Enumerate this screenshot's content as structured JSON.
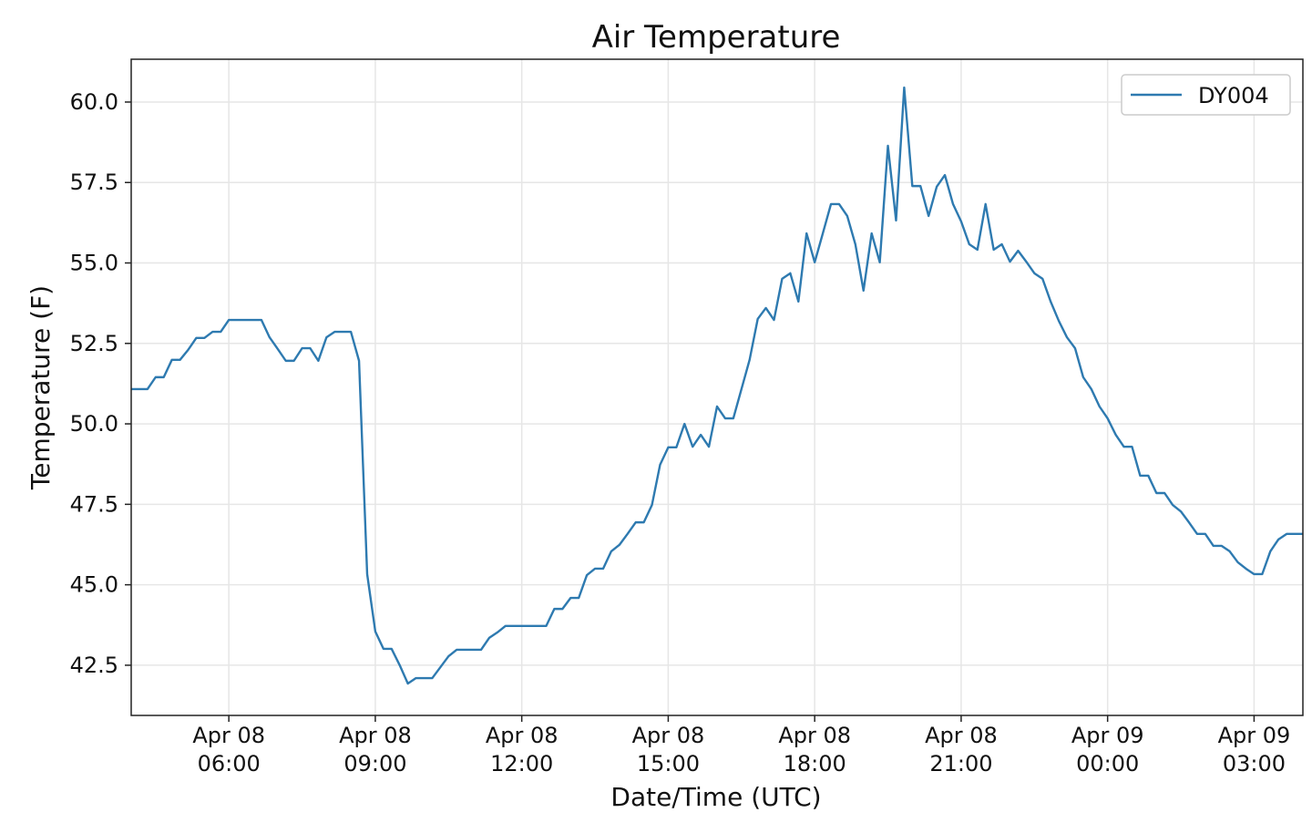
{
  "chart_data": {
    "type": "line",
    "title": "Air Temperature",
    "xlabel": "Date/Time (UTC)",
    "ylabel": "Temperature (F)",
    "legend": "upper right",
    "grid": true,
    "x": [
      "Apr 08 04:00",
      "Apr 08 04:10",
      "Apr 08 04:20",
      "Apr 08 04:30",
      "Apr 08 04:40",
      "Apr 08 04:50",
      "Apr 08 05:00",
      "Apr 08 05:10",
      "Apr 08 05:20",
      "Apr 08 05:30",
      "Apr 08 05:40",
      "Apr 08 05:50",
      "Apr 08 06:00",
      "Apr 08 06:10",
      "Apr 08 06:20",
      "Apr 08 06:30",
      "Apr 08 06:40",
      "Apr 08 06:50",
      "Apr 08 07:00",
      "Apr 08 07:10",
      "Apr 08 07:20",
      "Apr 08 07:30",
      "Apr 08 07:40",
      "Apr 08 07:50",
      "Apr 08 08:00",
      "Apr 08 08:10",
      "Apr 08 08:20",
      "Apr 08 08:30",
      "Apr 08 08:40",
      "Apr 08 08:50",
      "Apr 08 09:00",
      "Apr 08 09:10",
      "Apr 08 09:20",
      "Apr 08 09:30",
      "Apr 08 09:40",
      "Apr 08 09:50",
      "Apr 08 10:00",
      "Apr 08 10:10",
      "Apr 08 10:20",
      "Apr 08 10:30",
      "Apr 08 10:40",
      "Apr 08 10:50",
      "Apr 08 11:00",
      "Apr 08 11:10",
      "Apr 08 11:20",
      "Apr 08 11:30",
      "Apr 08 11:40",
      "Apr 08 11:50",
      "Apr 08 12:00",
      "Apr 08 12:10",
      "Apr 08 12:20",
      "Apr 08 12:30",
      "Apr 08 12:40",
      "Apr 08 12:50",
      "Apr 08 13:00",
      "Apr 08 13:10",
      "Apr 08 13:20",
      "Apr 08 13:30",
      "Apr 08 13:40",
      "Apr 08 13:50",
      "Apr 08 14:00",
      "Apr 08 14:10",
      "Apr 08 14:20",
      "Apr 08 14:30",
      "Apr 08 14:40",
      "Apr 08 14:50",
      "Apr 08 15:00",
      "Apr 08 15:10",
      "Apr 08 15:20",
      "Apr 08 15:30",
      "Apr 08 15:40",
      "Apr 08 15:50",
      "Apr 08 16:00",
      "Apr 08 16:10",
      "Apr 08 16:20",
      "Apr 08 16:30",
      "Apr 08 16:40",
      "Apr 08 16:50",
      "Apr 08 17:00",
      "Apr 08 17:10",
      "Apr 08 17:20",
      "Apr 08 17:30",
      "Apr 08 17:40",
      "Apr 08 17:50",
      "Apr 08 18:00",
      "Apr 08 18:10",
      "Apr 08 18:20",
      "Apr 08 18:30",
      "Apr 08 18:40",
      "Apr 08 18:50",
      "Apr 08 19:00",
      "Apr 08 19:10",
      "Apr 08 19:20",
      "Apr 08 19:30",
      "Apr 08 19:40",
      "Apr 08 19:50",
      "Apr 08 20:00",
      "Apr 08 20:10",
      "Apr 08 20:20",
      "Apr 08 20:30",
      "Apr 08 20:40",
      "Apr 08 20:50",
      "Apr 08 21:00",
      "Apr 08 21:10",
      "Apr 08 21:20",
      "Apr 08 21:30",
      "Apr 08 21:40",
      "Apr 08 21:50",
      "Apr 08 22:00",
      "Apr 08 22:10",
      "Apr 08 22:20",
      "Apr 08 22:30",
      "Apr 08 22:40",
      "Apr 08 22:50",
      "Apr 08 23:00",
      "Apr 08 23:10",
      "Apr 08 23:20",
      "Apr 08 23:30",
      "Apr 08 23:40",
      "Apr 08 23:50",
      "Apr 09 00:00",
      "Apr 09 00:10",
      "Apr 09 00:20",
      "Apr 09 00:30",
      "Apr 09 00:40",
      "Apr 09 00:50",
      "Apr 09 01:00",
      "Apr 09 01:10",
      "Apr 09 01:20",
      "Apr 09 01:30",
      "Apr 09 01:40",
      "Apr 09 01:50",
      "Apr 09 02:00",
      "Apr 09 02:10",
      "Apr 09 02:20",
      "Apr 09 02:30",
      "Apr 09 02:40",
      "Apr 09 02:50",
      "Apr 09 03:00",
      "Apr 09 03:10",
      "Apr 09 03:20",
      "Apr 09 03:30",
      "Apr 09 03:40",
      "Apr 09 03:50",
      "Apr 09 04:00"
    ],
    "series": [
      {
        "name": "DY004",
        "color": "#2e7ab0",
        "values": [
          51.08,
          51.08,
          51.08,
          51.45,
          51.45,
          51.99,
          51.99,
          52.3,
          52.67,
          52.67,
          52.86,
          52.86,
          53.23,
          53.23,
          53.23,
          53.23,
          53.23,
          52.69,
          52.33,
          51.96,
          51.96,
          52.35,
          52.35,
          51.96,
          52.69,
          52.86,
          52.86,
          52.86,
          51.96,
          45.33,
          43.55,
          43.01,
          43.01,
          42.5,
          41.93,
          42.1,
          42.1,
          42.1,
          42.44,
          42.78,
          42.98,
          42.98,
          42.98,
          42.98,
          43.35,
          43.52,
          43.72,
          43.72,
          43.72,
          43.72,
          43.72,
          43.72,
          44.25,
          44.25,
          44.59,
          44.59,
          45.3,
          45.5,
          45.5,
          46.04,
          46.24,
          46.58,
          46.94,
          46.94,
          47.48,
          48.73,
          49.27,
          49.27,
          50.0,
          49.29,
          49.66,
          49.29,
          50.54,
          50.17,
          50.17,
          51.08,
          51.99,
          53.26,
          53.6,
          53.23,
          54.51,
          54.68,
          53.8,
          55.92,
          55.02,
          55.92,
          56.83,
          56.83,
          56.46,
          55.58,
          54.14,
          55.92,
          55.02,
          58.64,
          56.32,
          60.45,
          57.39,
          57.39,
          56.46,
          57.37,
          57.73,
          56.83,
          56.29,
          55.58,
          55.41,
          56.83,
          55.41,
          55.58,
          55.04,
          55.38,
          55.04,
          54.68,
          54.51,
          53.8,
          53.2,
          52.69,
          52.35,
          51.45,
          51.08,
          50.54,
          50.17,
          49.66,
          49.29,
          49.29,
          48.39,
          48.39,
          47.85,
          47.85,
          47.48,
          47.28,
          46.94,
          46.58,
          46.58,
          46.21,
          46.21,
          46.04,
          45.7,
          45.5,
          45.33,
          45.33,
          46.04,
          46.41,
          46.58,
          46.58,
          46.58
        ]
      }
    ],
    "xlim": [
      "Apr 08 04:00",
      "Apr 09 04:00"
    ],
    "xticks": [
      "Apr 08 06:00",
      "Apr 08 09:00",
      "Apr 08 12:00",
      "Apr 08 15:00",
      "Apr 08 18:00",
      "Apr 08 21:00",
      "Apr 09 00:00",
      "Apr 09 03:00"
    ],
    "ylim": [
      40.94,
      61.33
    ],
    "yticks": [
      {
        "value": 42.5,
        "label": "42.5"
      },
      {
        "value": 45,
        "label": "45.0"
      },
      {
        "value": 47.5,
        "label": "47.5"
      },
      {
        "value": 50,
        "label": "50.0"
      },
      {
        "value": 52.5,
        "label": "52.5"
      },
      {
        "value": 55,
        "label": "55.0"
      },
      {
        "value": 57.5,
        "label": "57.5"
      },
      {
        "value": 60,
        "label": "60.0"
      }
    ]
  }
}
